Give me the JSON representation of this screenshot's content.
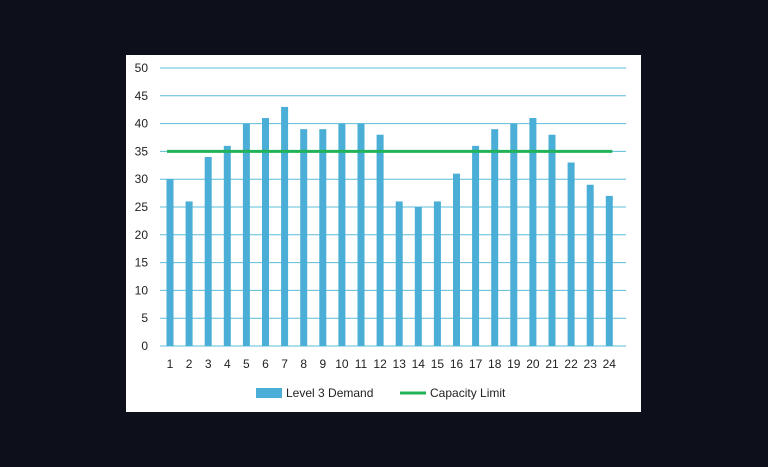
{
  "colors": {
    "page_background": "#0d0f1a",
    "card_background": "#ffffff",
    "bar": "#4aaed6",
    "capacity_line": "#22b35a",
    "gridline": "#5bbcd8",
    "text": "#222222"
  },
  "chart_data": {
    "type": "bar",
    "title": "",
    "xlabel": "",
    "ylabel": "",
    "categories": [
      "1",
      "2",
      "3",
      "4",
      "5",
      "6",
      "7",
      "8",
      "9",
      "10",
      "11",
      "12",
      "13",
      "14",
      "15",
      "16",
      "17",
      "18",
      "19",
      "20",
      "21",
      "22",
      "23",
      "24"
    ],
    "series": [
      {
        "name": "Level 3 Demand",
        "type": "bar",
        "values": [
          30,
          26,
          34,
          36,
          40,
          41,
          43,
          39,
          39,
          40,
          40,
          38,
          26,
          25,
          26,
          31,
          36,
          39,
          40,
          41,
          38,
          33,
          29,
          27
        ]
      },
      {
        "name": "Capacity Limit",
        "type": "line",
        "values": [
          35,
          35,
          35,
          35,
          35,
          35,
          35,
          35,
          35,
          35,
          35,
          35,
          35,
          35,
          35,
          35,
          35,
          35,
          35,
          35,
          35,
          35,
          35,
          35
        ]
      }
    ],
    "ylim": [
      0,
      50
    ],
    "yticks": [
      0,
      5,
      10,
      15,
      20,
      25,
      30,
      35,
      40,
      45,
      50
    ],
    "ytick_labels": [
      "0",
      "5",
      "10",
      "15",
      "20",
      "25",
      "30",
      "35",
      "40",
      "45",
      "50"
    ],
    "grid": true,
    "legend": {
      "position": "bottom",
      "entries": [
        "Level 3 Demand",
        "Capacity Limit"
      ]
    }
  }
}
